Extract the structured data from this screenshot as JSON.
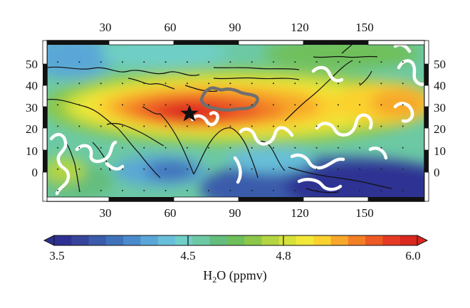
{
  "map": {
    "lon_range": [
      5,
      180
    ],
    "lat_range": [
      -15,
      60
    ],
    "top_lon_ticks": [
      "30",
      "60",
      "90",
      "120",
      "150"
    ],
    "bottom_lon_ticks": [
      "30",
      "60",
      "90",
      "120",
      "150"
    ],
    "lat_ticks_left": [
      "50",
      "40",
      "30",
      "20",
      "10",
      "0"
    ],
    "lat_ticks_right": [
      "50",
      "40",
      "30",
      "20",
      "10",
      "0"
    ],
    "marker": "star-icon",
    "field_variable": "H2O",
    "contour_color_white": "#ffffff",
    "plateau_outline_color": "#6f6f6f"
  },
  "colorbar": {
    "tick_labels": [
      "3.5",
      "4.5",
      "4.8",
      "6.0"
    ],
    "title_main": "H",
    "title_sub": "2",
    "title_rest": "O (ppmv)",
    "colors": [
      "#2e3192",
      "#36449c",
      "#3b5bab",
      "#3f72bb",
      "#4a8ccb",
      "#5aa7d7",
      "#68bfd9",
      "#6fcfc8",
      "#6cc9a4",
      "#64bd7d",
      "#6fbf5a",
      "#8cc74a",
      "#b3d541",
      "#d5e23a",
      "#f1e838",
      "#fbd12f",
      "#f7a82a",
      "#f27f26",
      "#ec5a25",
      "#e53a24",
      "#d9281f"
    ]
  }
}
